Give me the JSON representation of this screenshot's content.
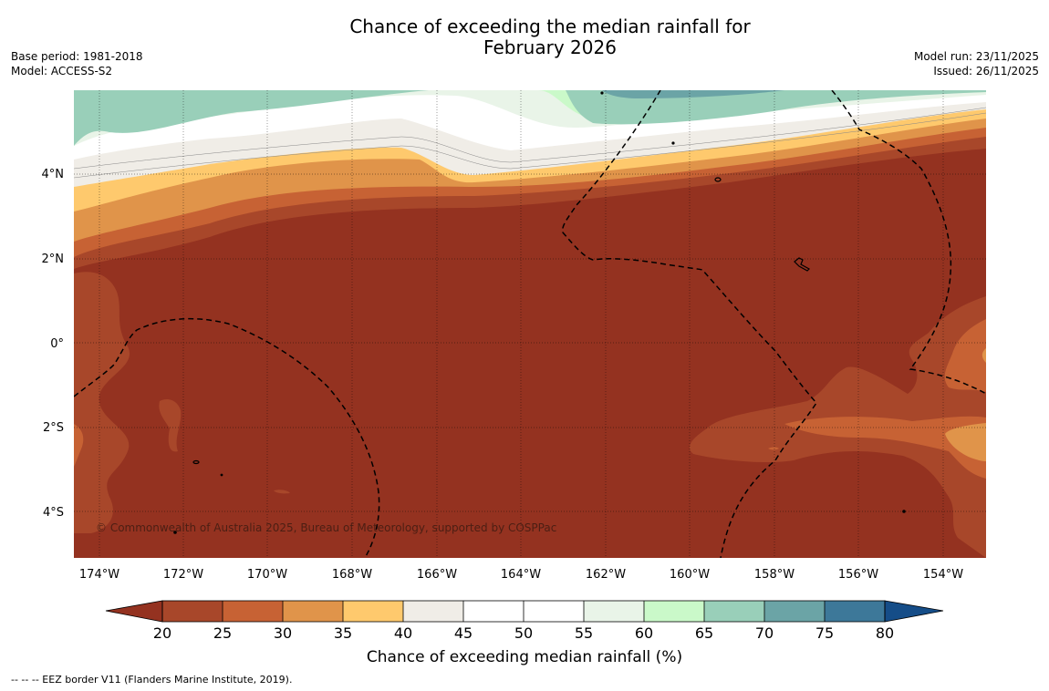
{
  "title": {
    "line1": "Chance of exceeding the median rainfall for",
    "line2": "February 2026"
  },
  "meta_left": {
    "base_period": "Base period: 1981-2018",
    "model": "Model: ACCESS-S2"
  },
  "meta_right": {
    "model_run": "Model run: 23/11/2025",
    "issued": "Issued: 26/11/2025"
  },
  "map": {
    "lat_labels": [
      "4°N",
      "2°N",
      "0°",
      "2°S",
      "4°S"
    ],
    "lon_labels": [
      "174°W",
      "172°W",
      "170°W",
      "168°W",
      "166°W",
      "164°W",
      "162°W",
      "160°W",
      "158°W",
      "156°W",
      "154°W"
    ],
    "copyright": "© Commonwealth of Australia 2025, Bureau of Meteorology, supported by COSPPac",
    "colors": {
      "c_lt20": "#943220",
      "c20_25": "#a8472a",
      "c25_30": "#c76234",
      "c30_35": "#e0944a",
      "c35_40": "#fec96d",
      "c40_45": "#f0ede7",
      "c45_55": "#ffffff",
      "c55_60": "#e9f4e8",
      "c60_65": "#caf9c9",
      "c65_70": "#99cfb9",
      "c70_75": "#6ba4a6",
      "c75_80": "#3d7899",
      "c_gt80": "#154d88"
    }
  },
  "colorbar": {
    "ticks": [
      "20",
      "25",
      "30",
      "35",
      "40",
      "45",
      "50",
      "55",
      "60",
      "65",
      "70",
      "75",
      "80"
    ],
    "label": "Chance of exceeding median rainfall (%)"
  },
  "footer": {
    "legend_text": "--  --  -- EEZ border V11 (Flanders Marine Institute, 2019)."
  }
}
